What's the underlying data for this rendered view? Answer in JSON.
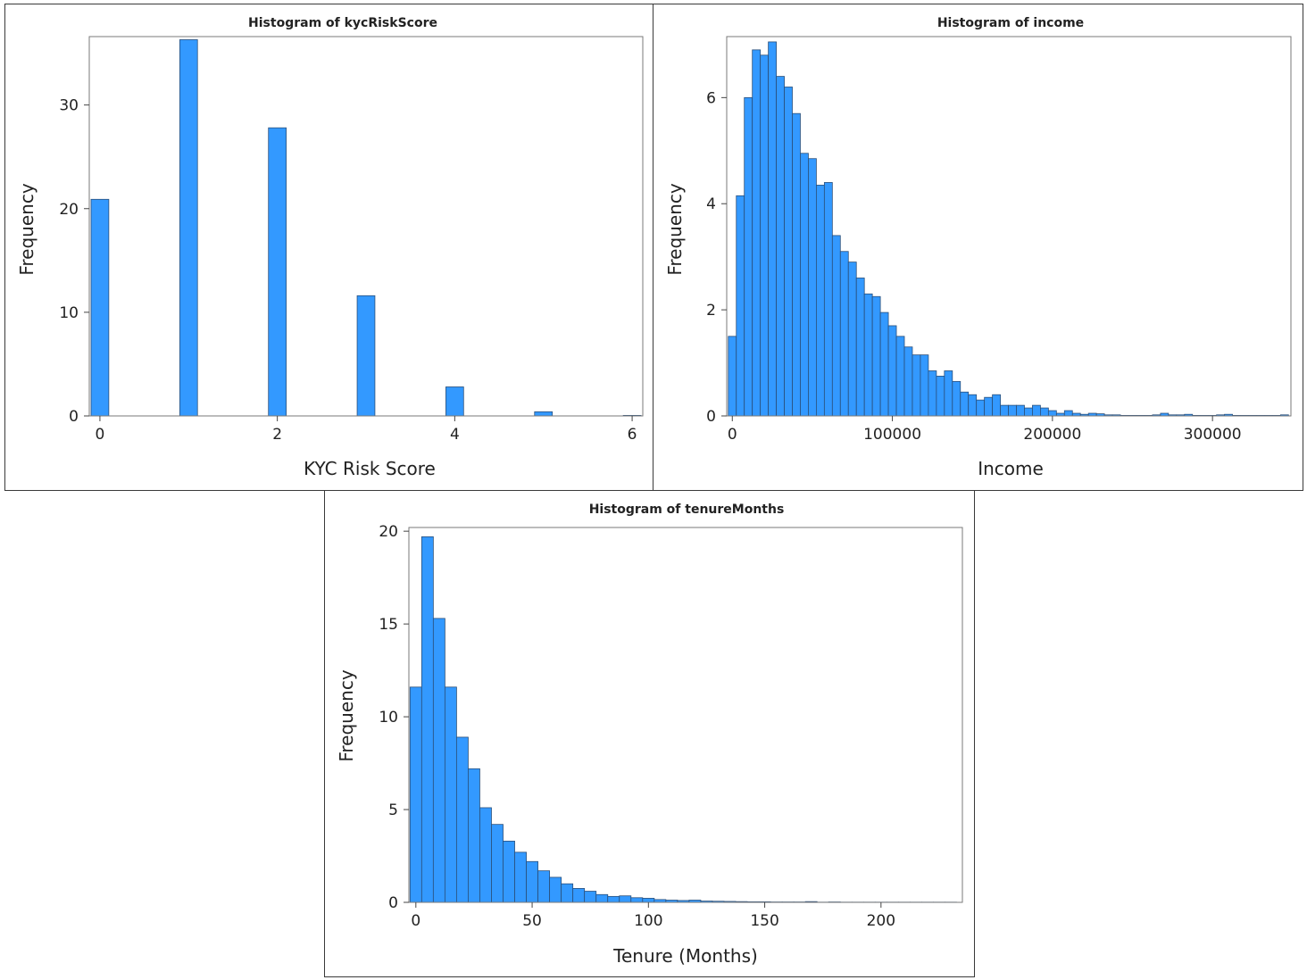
{
  "colors": {
    "bar_fill": "#3399ff",
    "bar_stroke": "#2a4f7a",
    "frame": "#7a7a7a",
    "text": "#222222"
  },
  "chart_data": [
    {
      "id": "kyc",
      "type": "bar",
      "title": "Histogram of kycRiskScore",
      "xlabel": "KYC Risk Score",
      "ylabel": "Frequency",
      "xlim": [
        -0.12,
        6.12
      ],
      "ylim": [
        0,
        36.6
      ],
      "xticks": [
        0,
        2,
        4,
        6
      ],
      "yticks": [
        0,
        10,
        20,
        30
      ],
      "bin_width": 0.2,
      "bins_start": [
        -0.1,
        0.9,
        1.9,
        2.9,
        3.9,
        4.9,
        5.9
      ],
      "values": [
        20.9,
        36.3,
        27.8,
        11.6,
        2.8,
        0.4,
        0.05
      ]
    },
    {
      "id": "income",
      "type": "bar",
      "title": "Histogram of income",
      "xlabel": "Income",
      "ylabel": "Frequency",
      "xlim": [
        -3500,
        349000
      ],
      "ylim": [
        0,
        7.15
      ],
      "xticks": [
        0,
        100000,
        200000,
        300000
      ],
      "yticks": [
        0,
        2,
        4,
        6
      ],
      "bin_width": 5000,
      "bins_start": [
        -2500,
        2500,
        7500,
        12500,
        17500,
        22500,
        27500,
        32500,
        37500,
        42500,
        47500,
        52500,
        57500,
        62500,
        67500,
        72500,
        77500,
        82500,
        87500,
        92500,
        97500,
        102500,
        107500,
        112500,
        117500,
        122500,
        127500,
        132500,
        137500,
        142500,
        147500,
        152500,
        157500,
        162500,
        167500,
        172500,
        177500,
        182500,
        187500,
        192500,
        197500,
        202500,
        207500,
        212500,
        217500,
        222500,
        227500,
        232500,
        237500,
        242500,
        247500,
        252500,
        257500,
        262500,
        267500,
        272500,
        277500,
        282500,
        287500,
        292500,
        297500,
        302500,
        307500,
        312500,
        317500,
        322500,
        327500,
        332500,
        337500,
        342500
      ],
      "values": [
        1.5,
        4.15,
        6.0,
        6.9,
        6.8,
        7.05,
        6.4,
        6.2,
        5.7,
        4.95,
        4.85,
        4.35,
        4.4,
        3.4,
        3.1,
        2.9,
        2.6,
        2.3,
        2.25,
        1.95,
        1.7,
        1.5,
        1.3,
        1.15,
        1.15,
        0.85,
        0.75,
        0.85,
        0.65,
        0.45,
        0.4,
        0.3,
        0.35,
        0.4,
        0.2,
        0.2,
        0.2,
        0.15,
        0.2,
        0.15,
        0.1,
        0.05,
        0.1,
        0.05,
        0.03,
        0.05,
        0.04,
        0.02,
        0.02,
        0.01,
        0.01,
        0.01,
        0.01,
        0.02,
        0.05,
        0.02,
        0.02,
        0.03,
        0.01,
        0.01,
        0.01,
        0.02,
        0.03,
        0.01,
        0.01,
        0.01,
        0.01,
        0.01,
        0.01,
        0.02
      ]
    },
    {
      "id": "tenure",
      "type": "bar",
      "title": "Histogram of tenureMonths",
      "xlabel": "Tenure (Months)",
      "ylabel": "Frequency",
      "xlim": [
        -3,
        235
      ],
      "ylim": [
        0,
        20.2
      ],
      "xticks": [
        0,
        50,
        100,
        150,
        200
      ],
      "yticks": [
        0,
        5,
        10,
        15,
        20
      ],
      "bin_width": 5,
      "bins_start": [
        -2.5,
        2.5,
        7.5,
        12.5,
        17.5,
        22.5,
        27.5,
        32.5,
        37.5,
        42.5,
        47.5,
        52.5,
        57.5,
        62.5,
        67.5,
        72.5,
        77.5,
        82.5,
        87.5,
        92.5,
        97.5,
        102.5,
        107.5,
        112.5,
        117.5,
        122.5,
        127.5,
        132.5,
        137.5,
        142.5,
        147.5,
        152.5,
        157.5,
        162.5,
        167.5,
        172.5,
        177.5,
        182.5,
        187.5,
        192.5,
        197.5,
        202.5,
        207.5,
        212.5,
        217.5,
        222.5,
        227.5
      ],
      "values": [
        11.6,
        19.7,
        15.3,
        11.6,
        8.9,
        7.2,
        5.1,
        4.2,
        3.3,
        2.7,
        2.2,
        1.7,
        1.35,
        1.0,
        0.75,
        0.6,
        0.42,
        0.32,
        0.35,
        0.25,
        0.22,
        0.15,
        0.12,
        0.1,
        0.12,
        0.07,
        0.06,
        0.05,
        0.04,
        0.03,
        0.03,
        0.02,
        0.02,
        0.02,
        0.04,
        0.01,
        0.02,
        0.01,
        0.01,
        0.01,
        0.01,
        0.01,
        0.01,
        0.01,
        0.01,
        0.01,
        0.01
      ]
    }
  ]
}
